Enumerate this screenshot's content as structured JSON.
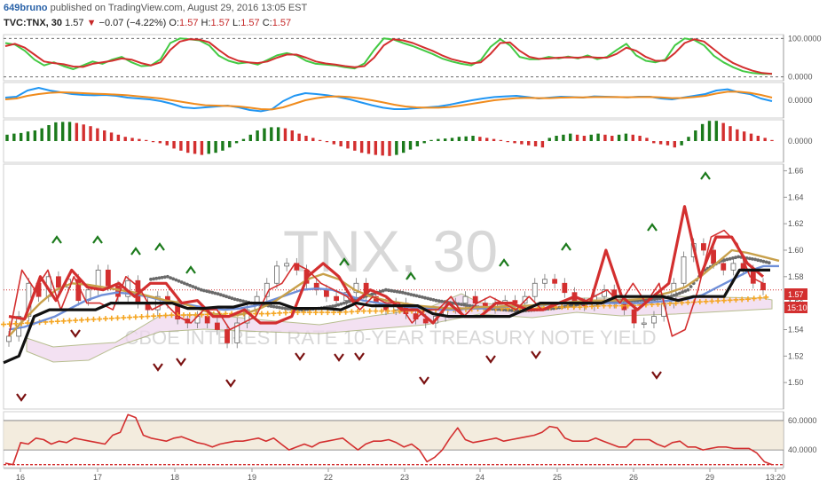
{
  "header": {
    "user": "649bruno",
    "published": "published on TradingView.com, August 29, 2016 13:05 EST",
    "symbol": "TVC:TNX, 30",
    "last": "1.57",
    "change": "−0.07 (−4.22%)",
    "o_label": "O:",
    "o": "1.57",
    "h_label": "H:",
    "h": "1.57",
    "l_label": "L:",
    "l": "1.57",
    "c_label": "C:",
    "c": "1.57"
  },
  "watermark": {
    "symbol": "TNX, 30",
    "name": "CBOE INTEREST RATE 10-YEAR TREASURY NOTE YIELD"
  },
  "price_badges": {
    "last": "1.57",
    "countdown": "15:10"
  },
  "colors": {
    "up": "#1b7a1b",
    "down": "#d32f2f",
    "stoch_k": "#43c943",
    "stoch_d": "#d32f2f",
    "macd": "#2196f3",
    "signal": "#f08c1e",
    "black": "#111111",
    "gold": "#c8a04a",
    "blue_ma": "#6f8fd8",
    "orange_ma": "#f5a623",
    "grey_dots": "#6a6a6a"
  },
  "chart_data": [
    {
      "type": "line",
      "title": "",
      "y_ticks": [
        "100.0000",
        "0.0000"
      ],
      "ylim": [
        -10,
        110
      ],
      "series": [
        {
          "values": [
            88,
            84,
            68,
            45,
            30,
            38,
            28,
            20,
            30,
            40,
            34,
            45,
            52,
            38,
            28,
            30,
            46,
            88,
            100,
            98,
            95,
            82,
            55,
            42,
            35,
            38,
            32,
            44,
            56,
            62,
            56,
            42,
            34,
            32,
            30,
            25,
            22,
            35,
            70,
            100,
            97,
            88,
            80,
            70,
            60,
            48,
            40,
            34,
            30,
            44,
            78,
            98,
            82,
            52,
            46,
            46,
            52,
            48,
            53,
            48,
            56,
            46,
            52,
            70,
            86,
            56,
            42,
            38,
            45,
            82,
            100,
            96,
            82,
            55,
            38,
            25,
            15,
            10,
            8,
            8
          ]
        },
        {
          "values": [
            80,
            86,
            76,
            58,
            40,
            36,
            33,
            27,
            26,
            34,
            38,
            42,
            48,
            45,
            36,
            30,
            38,
            70,
            92,
            98,
            97,
            90,
            70,
            52,
            42,
            38,
            36,
            40,
            50,
            58,
            58,
            50,
            40,
            35,
            32,
            28,
            25,
            28,
            50,
            82,
            98,
            95,
            88,
            78,
            68,
            56,
            46,
            40,
            35,
            38,
            60,
            88,
            90,
            68,
            52,
            47,
            48,
            50,
            51,
            50,
            52,
            50,
            50,
            60,
            76,
            68,
            52,
            42,
            42,
            62,
            88,
            98,
            92,
            72,
            52,
            36,
            25,
            16,
            10,
            8
          ]
        }
      ]
    },
    {
      "type": "line",
      "title": "",
      "y_ticks": [
        "0.0000"
      ],
      "ylim": [
        -1,
        1
      ],
      "series": [
        {
          "values": [
            0.15,
            0.2,
            0.55,
            0.7,
            0.55,
            0.45,
            0.35,
            0.3,
            0.28,
            0.3,
            0.25,
            0.15,
            0.1,
            0.05,
            -0.05,
            -0.2,
            -0.4,
            -0.45,
            -0.4,
            -0.35,
            -0.3,
            -0.4,
            -0.55,
            -0.62,
            -0.5,
            -0.05,
            0.25,
            0.4,
            0.35,
            0.28,
            0.18,
            0.05,
            -0.12,
            -0.28,
            -0.42,
            -0.5,
            -0.5,
            -0.45,
            -0.4,
            -0.35,
            -0.25,
            -0.12,
            0,
            0.1,
            0.18,
            0.22,
            0.25,
            0.18,
            0.1,
            0.15,
            0.2,
            0.18,
            0.15,
            0.22,
            0.2,
            0.18,
            0.16,
            0.2,
            0.2,
            0.1,
            0.05,
            0.15,
            0.25,
            0.35,
            0.55,
            0.62,
            0.45,
            0.35,
            0.1,
            -0.05
          ]
        },
        {
          "values": [
            0.05,
            0.1,
            0.25,
            0.35,
            0.42,
            0.45,
            0.43,
            0.4,
            0.37,
            0.35,
            0.32,
            0.28,
            0.22,
            0.16,
            0.1,
            0,
            -0.1,
            -0.2,
            -0.28,
            -0.3,
            -0.32,
            -0.35,
            -0.42,
            -0.5,
            -0.52,
            -0.4,
            -0.2,
            0,
            0.12,
            0.2,
            0.22,
            0.18,
            0.1,
            0,
            -0.12,
            -0.25,
            -0.35,
            -0.4,
            -0.42,
            -0.42,
            -0.38,
            -0.3,
            -0.2,
            -0.1,
            0,
            0.06,
            0.12,
            0.14,
            0.12,
            0.12,
            0.15,
            0.16,
            0.16,
            0.18,
            0.18,
            0.18,
            0.17,
            0.18,
            0.19,
            0.16,
            0.12,
            0.13,
            0.18,
            0.25,
            0.38,
            0.48,
            0.48,
            0.42,
            0.3,
            0.15
          ]
        }
      ]
    },
    {
      "type": "bar",
      "title": "",
      "y_ticks": [
        "0.0000"
      ],
      "ylim": [
        -1,
        1
      ],
      "values": [
        0.3,
        0.35,
        0.38,
        0.45,
        0.5,
        0.6,
        0.75,
        0.88,
        0.9,
        0.9,
        0.85,
        0.78,
        0.7,
        0.6,
        0.5,
        0.4,
        0.3,
        0.2,
        0.15,
        0.1,
        0.05,
        -0.05,
        -0.1,
        -0.2,
        -0.35,
        -0.45,
        -0.55,
        -0.6,
        -0.65,
        -0.6,
        -0.55,
        -0.45,
        -0.3,
        -0.1,
        0.1,
        0.3,
        0.5,
        0.6,
        0.65,
        0.65,
        0.6,
        0.5,
        0.35,
        0.25,
        0.15,
        0.05,
        -0.05,
        -0.15,
        -0.25,
        -0.35,
        -0.45,
        -0.55,
        -0.6,
        -0.65,
        -0.68,
        -0.7,
        -0.65,
        -0.55,
        -0.4,
        -0.25,
        -0.1,
        0.05,
        0.1,
        0.12,
        0.15,
        0.2,
        0.22,
        0.25,
        0.2,
        0.15,
        0.1,
        0.05,
        -0.05,
        -0.1,
        -0.15,
        -0.2,
        -0.25,
        -0.3,
        0.15,
        0.25,
        0.3,
        0.35,
        0.3,
        0.25,
        0.3,
        0.35,
        0.3,
        0.25,
        0.3,
        0.35,
        0.3,
        0.25,
        0.15,
        -0.1,
        -0.15,
        -0.2,
        -0.3,
        -0.2,
        0.2,
        0.5,
        0.8,
        0.95,
        0.95,
        0.85,
        0.7,
        0.55,
        0.45,
        0.35,
        0.25,
        0.15,
        0.05
      ]
    },
    {
      "type": "line",
      "title": "",
      "y_ticks": [
        "1.66",
        "1.64",
        "1.62",
        "1.60",
        "1.58",
        "1.56",
        "1.54",
        "1.52",
        "1.50"
      ],
      "ylim": [
        1.48,
        1.665
      ],
      "x_ticks": [
        "16",
        "17",
        "18",
        "19",
        "22",
        "23",
        "24",
        "25",
        "26",
        "29",
        "13:20"
      ],
      "series": [
        {
          "name": "",
          "style": "candles",
          "values": [
            1.535,
            1.55,
            1.575,
            1.565,
            1.58,
            1.572,
            1.578,
            1.562,
            1.57,
            1.585,
            1.573,
            1.565,
            1.577,
            1.56,
            1.555,
            1.565,
            1.56,
            1.548,
            1.545,
            1.55,
            1.545,
            1.54,
            1.53,
            1.545,
            1.555,
            1.565,
            1.575,
            1.588,
            1.59,
            1.585,
            1.575,
            1.57,
            1.565,
            1.562,
            1.568,
            1.575,
            1.565,
            1.56,
            1.555,
            1.56,
            1.552,
            1.548,
            1.545,
            1.55,
            1.556,
            1.56,
            1.565,
            1.56,
            1.556,
            1.56,
            1.562,
            1.56,
            1.565,
            1.575,
            1.578,
            1.575,
            1.568,
            1.56,
            1.558,
            1.565,
            1.57,
            1.56,
            1.555,
            1.545,
            1.545,
            1.55,
            1.56,
            1.575,
            1.595,
            1.605,
            1.6,
            1.59,
            1.585,
            1.59,
            1.585,
            1.575,
            1.57
          ]
        },
        {
          "name": "",
          "style": "thin-red",
          "values": [
            1.535,
            1.585,
            1.57,
            1.585,
            1.555,
            1.58,
            1.56,
            1.56,
            1.555,
            1.58,
            1.572,
            1.555,
            1.56,
            1.55,
            1.545,
            1.555,
            1.555,
            1.54,
            1.545,
            1.55,
            1.57,
            1.575,
            1.59,
            1.585,
            1.575,
            1.57,
            1.565,
            1.555,
            1.565,
            1.56,
            1.56,
            1.545,
            1.555,
            1.555,
            1.565,
            1.55,
            1.56,
            1.565,
            1.56,
            1.555,
            1.565,
            1.555,
            1.56,
            1.56,
            1.56,
            1.565,
            1.57,
            1.56,
            1.575,
            1.56,
            1.575,
            1.535,
            1.54,
            1.57,
            1.61,
            1.615,
            1.605,
            1.58,
            1.575
          ]
        },
        {
          "name": "",
          "style": "thick-red",
          "values": [
            1.55,
            1.548,
            1.58,
            1.562,
            1.585,
            1.572,
            1.57,
            1.575,
            1.565,
            1.575,
            1.575,
            1.56,
            1.562,
            1.55,
            1.55,
            1.555,
            1.545,
            1.545,
            1.55,
            1.58,
            1.59,
            1.58,
            1.56,
            1.57,
            1.565,
            1.555,
            1.555,
            1.545,
            1.56,
            1.55,
            1.55,
            1.56,
            1.56,
            1.555,
            1.555,
            1.56,
            1.565,
            1.56,
            1.6,
            1.565,
            1.555,
            1.565,
            1.575,
            1.633,
            1.58,
            1.61,
            1.61,
            1.59,
            1.58
          ]
        },
        {
          "name": "",
          "style": "black",
          "values": [
            1.515,
            1.52,
            1.55,
            1.555,
            1.555,
            1.555,
            1.555,
            1.56,
            1.56,
            1.56,
            1.56,
            1.56,
            1.556,
            1.556,
            1.557,
            1.557,
            1.56,
            1.56,
            1.56,
            1.556,
            1.556,
            1.556,
            1.555,
            1.56,
            1.558,
            1.558,
            1.558,
            1.558,
            1.552,
            1.55,
            1.55,
            1.55,
            1.55,
            1.55,
            1.555,
            1.56,
            1.56,
            1.56,
            1.56,
            1.56,
            1.565,
            1.565,
            1.565,
            1.565,
            1.562,
            1.565,
            1.565,
            1.565,
            1.585,
            1.585,
            1.585
          ]
        },
        {
          "name": "",
          "style": "gold",
          "values": [
            1.535,
            1.548,
            1.56,
            1.57,
            1.575,
            1.574,
            1.572,
            1.57,
            1.568,
            1.565,
            1.562,
            1.56,
            1.556,
            1.552,
            1.55,
            1.552,
            1.556,
            1.562,
            1.57,
            1.578,
            1.582,
            1.578,
            1.57,
            1.565,
            1.562,
            1.56,
            1.558,
            1.557,
            1.556,
            1.556,
            1.557,
            1.557,
            1.558,
            1.558,
            1.559,
            1.56,
            1.561,
            1.562,
            1.562,
            1.562,
            1.563,
            1.565,
            1.568,
            1.572,
            1.58,
            1.59,
            1.6,
            1.598,
            1.595,
            1.592
          ]
        },
        {
          "name": "",
          "style": "blue",
          "values": [
            1.54,
            1.542,
            1.546,
            1.55,
            1.556,
            1.562,
            1.566,
            1.568,
            1.567,
            1.565,
            1.562,
            1.56,
            1.558,
            1.556,
            1.555,
            1.556,
            1.558,
            1.562,
            1.566,
            1.57,
            1.571,
            1.57,
            1.566,
            1.562,
            1.56,
            1.558,
            1.557,
            1.556,
            1.555,
            1.555,
            1.556,
            1.556,
            1.557,
            1.558,
            1.558,
            1.559,
            1.56,
            1.56,
            1.56,
            1.56,
            1.56,
            1.56,
            1.561,
            1.562,
            1.563,
            1.566,
            1.572,
            1.578,
            1.584,
            1.588,
            1.588
          ]
        },
        {
          "name": "",
          "style": "orange-plus",
          "values": [
            1.544,
            1.545,
            1.546,
            1.547,
            1.548,
            1.549,
            1.55,
            1.551,
            1.551,
            1.552,
            1.552,
            1.552,
            1.553,
            1.553,
            1.553,
            1.554,
            1.554,
            1.554,
            1.555,
            1.555,
            1.556,
            1.556,
            1.556,
            1.557,
            1.557,
            1.558,
            1.558,
            1.559,
            1.56,
            1.561,
            1.562,
            1.563,
            1.565
          ]
        },
        {
          "name": "",
          "style": "grey-dots",
          "values": [
            1.578,
            1.58,
            1.575,
            1.57,
            1.567,
            1.563,
            1.56,
            1.558,
            1.556,
            1.555,
            1.556,
            1.558,
            1.562,
            1.566,
            1.57,
            1.568,
            1.565,
            1.562,
            1.56,
            1.558,
            1.556,
            1.555,
            1.554,
            1.555,
            1.556,
            1.558,
            1.56,
            1.561,
            1.562,
            1.562,
            1.563,
            1.565,
            1.57,
            1.585,
            1.592,
            1.595,
            1.593,
            1.59
          ]
        }
      ]
    },
    {
      "type": "line",
      "title": "",
      "y_ticks": [
        "60.0000",
        "40.0000"
      ],
      "ylim": [
        28,
        66
      ],
      "series": [
        {
          "values": [
            31,
            30,
            45,
            44,
            48,
            47,
            44,
            46,
            45,
            48,
            47,
            46,
            45,
            44,
            50,
            52,
            64,
            62,
            50,
            48,
            47,
            46,
            48,
            49,
            47,
            45,
            44,
            42,
            44,
            45,
            46,
            46,
            47,
            48,
            46,
            48,
            44,
            40,
            42,
            44,
            42,
            45,
            46,
            47,
            48,
            44,
            40,
            44,
            46,
            46,
            47,
            45,
            42,
            44,
            40,
            32,
            35,
            40,
            48,
            55,
            47,
            45,
            46,
            47,
            48,
            46,
            47,
            48,
            49,
            50,
            52,
            56,
            55,
            48,
            46,
            46,
            46,
            48,
            46,
            44,
            42,
            42,
            47,
            47,
            47,
            44,
            42,
            45,
            46,
            42,
            42,
            40,
            41,
            42,
            42,
            41,
            41,
            41,
            38,
            32,
            30
          ]
        }
      ]
    }
  ]
}
